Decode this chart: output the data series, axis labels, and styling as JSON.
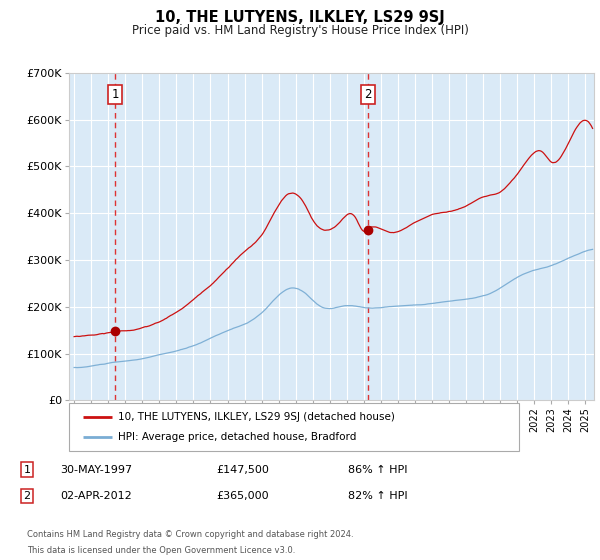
{
  "title": "10, THE LUTYENS, ILKLEY, LS29 9SJ",
  "subtitle": "Price paid vs. HM Land Registry's House Price Index (HPI)",
  "bg_color": "#daeaf7",
  "red_line_color": "#cc1111",
  "blue_line_color": "#7aadd4",
  "grid_color": "#ffffff",
  "dashed_line_color": "#dd3333",
  "marker_color": "#aa0000",
  "sale1_x": 1997.41,
  "sale1_y": 147500,
  "sale1_label": "1",
  "sale1_date": "30-MAY-1997",
  "sale1_price": "£147,500",
  "sale1_hpi": "86% ↑ HPI",
  "sale2_x": 2012.25,
  "sale2_y": 365000,
  "sale2_label": "2",
  "sale2_date": "02-APR-2012",
  "sale2_price": "£365,000",
  "sale2_hpi": "82% ↑ HPI",
  "ylim_max": 700000,
  "ylim_min": 0,
  "xlim_min": 1994.7,
  "xlim_max": 2025.5,
  "red_label": "10, THE LUTYENS, ILKLEY, LS29 9SJ (detached house)",
  "blue_label": "HPI: Average price, detached house, Bradford",
  "footer": "Contains HM Land Registry data © Crown copyright and database right 2024.\nThis data is licensed under the Open Government Licence v3.0.",
  "yticks": [
    0,
    100000,
    200000,
    300000,
    400000,
    500000,
    600000,
    700000
  ],
  "ytick_labels": [
    "£0",
    "£100K",
    "£200K",
    "£300K",
    "£400K",
    "£500K",
    "£600K",
    "£700K"
  ]
}
